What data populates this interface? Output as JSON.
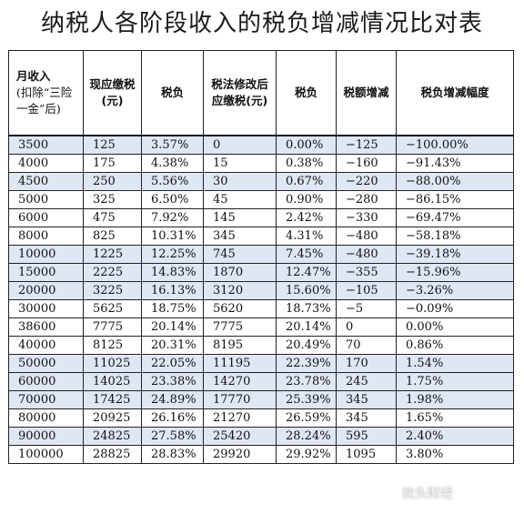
{
  "title": "纳税人各阶段收入的税负增减情况比对表",
  "headers": {
    "col1_main": "月收入",
    "col1_sub": "(扣除“三险一金”后)",
    "col2": "现应缴税(元)",
    "col3": "税负",
    "col4": "税法修改后应缴税(元)",
    "col5": "税负",
    "col6": "税额增减",
    "col7": "税负增减幅度"
  },
  "rows": [
    [
      "3500",
      "125",
      "3.57%",
      "0",
      "0.00%",
      "−125",
      "−100.00%"
    ],
    [
      "4000",
      "175",
      "4.38%",
      "15",
      "0.38%",
      "−160",
      "−91.43%"
    ],
    [
      "4500",
      "250",
      "5.56%",
      "30",
      "0.67%",
      "−220",
      "−88.00%"
    ],
    [
      "5000",
      "325",
      "6.50%",
      "45",
      "0.90%",
      "−280",
      "−86.15%"
    ],
    [
      "6000",
      "475",
      "7.92%",
      "145",
      "2.42%",
      "−330",
      "−69.47%"
    ],
    [
      "8000",
      "825",
      "10.31%",
      "345",
      "4.31%",
      "−480",
      "−58.18%"
    ],
    [
      "10000",
      "1225",
      "12.25%",
      "745",
      "7.45%",
      "−480",
      "−39.18%"
    ],
    [
      "15000",
      "2225",
      "14.83%",
      "1870",
      "12.47%",
      "−355",
      "−15.96%"
    ],
    [
      "20000",
      "3225",
      "16.13%",
      "3120",
      "15.60%",
      "−105",
      "−3.26%"
    ],
    [
      "30000",
      "5625",
      "18.75%",
      "5620",
      "18.73%",
      "−5",
      "−0.09%"
    ],
    [
      "38600",
      "7775",
      "20.14%",
      "7775",
      "20.14%",
      "0",
      "0.00%"
    ],
    [
      "40000",
      "8125",
      "20.31%",
      "8195",
      "20.49%",
      "70",
      "0.86%"
    ],
    [
      "50000",
      "11025",
      "22.05%",
      "11195",
      "22.39%",
      "170",
      "1.54%"
    ],
    [
      "60000",
      "14025",
      "23.38%",
      "14270",
      "23.78%",
      "245",
      "1.75%"
    ],
    [
      "70000",
      "17425",
      "24.89%",
      "17770",
      "25.39%",
      "345",
      "1.98%"
    ],
    [
      "80000",
      "20925",
      "26.16%",
      "21270",
      "26.59%",
      "345",
      "1.65%"
    ],
    [
      "90000",
      "24825",
      "27.58%",
      "25420",
      "28.24%",
      "595",
      "2.40%"
    ],
    [
      "100000",
      "28825",
      "28.83%",
      "29920",
      "29.92%",
      "1095",
      "3.80%"
    ]
  ],
  "shaded_rows": [
    0,
    2,
    6,
    7,
    8,
    12,
    13,
    14,
    16
  ],
  "row_shade_color": "#dfe6f4",
  "watermark_right": "枕头财经"
}
